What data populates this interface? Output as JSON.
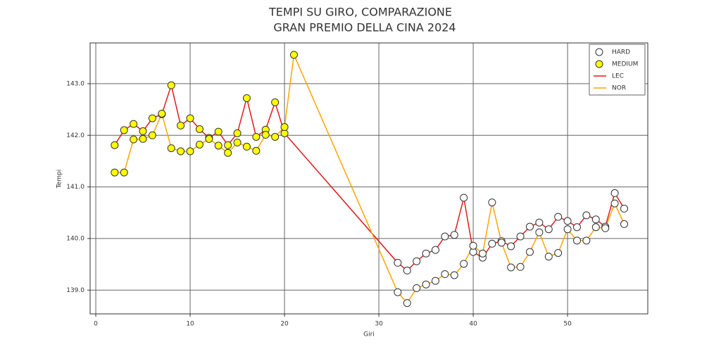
{
  "chart_data": {
    "type": "line",
    "title_lines": [
      "TEMPI SU GIRO, COMPARAZIONE",
      "GRAN PREMIO DELLA CINA 2024"
    ],
    "xlabel": "Giri",
    "ylabel": "Tempi",
    "xlim": [
      -0.6,
      58.5
    ],
    "ylim": [
      138.54,
      143.79
    ],
    "xticks": [
      0,
      10,
      20,
      30,
      40,
      50
    ],
    "yticks": [
      {
        "value": 139,
        "label": "139.0"
      },
      {
        "value": 140,
        "label": "140.0"
      },
      {
        "value": 141,
        "label": "141.0"
      },
      {
        "value": 142,
        "label": "142.0"
      },
      {
        "value": 143,
        "label": "143.0"
      }
    ],
    "grid": true,
    "legend": "upper right",
    "markers": [
      {
        "name": "HARD",
        "color": "#ffffff"
      },
      {
        "name": "MEDIUM",
        "color": "#ffff00"
      }
    ],
    "series": [
      {
        "name": "LEC",
        "color": "#e31a1c",
        "x": [
          2,
          3,
          4,
          5,
          6,
          7,
          8,
          9,
          10,
          11,
          12,
          13,
          14,
          15,
          16,
          17,
          18,
          19,
          20,
          32,
          33,
          34,
          35,
          36,
          37,
          38,
          39,
          40,
          41,
          42,
          43,
          44,
          45,
          46,
          47,
          48,
          49,
          50,
          51,
          52,
          53,
          54,
          55,
          56
        ],
        "values": [
          141.81,
          142.1,
          142.22,
          142.08,
          142.33,
          142.41,
          142.97,
          142.19,
          142.33,
          142.12,
          141.95,
          142.07,
          141.81,
          142.04,
          142.72,
          141.97,
          142.11,
          142.64,
          142.04,
          139.53,
          139.38,
          139.56,
          139.71,
          139.78,
          140.04,
          140.07,
          140.79,
          139.74,
          139.63,
          139.9,
          139.95,
          139.85,
          140.04,
          140.23,
          140.31,
          140.18,
          140.42,
          140.34,
          140.22,
          140.45,
          140.37,
          140.23,
          140.88,
          140.58
        ],
        "compound": [
          "MEDIUM",
          "MEDIUM",
          "MEDIUM",
          "MEDIUM",
          "MEDIUM",
          "MEDIUM",
          "MEDIUM",
          "MEDIUM",
          "MEDIUM",
          "MEDIUM",
          "MEDIUM",
          "MEDIUM",
          "MEDIUM",
          "MEDIUM",
          "MEDIUM",
          "MEDIUM",
          "MEDIUM",
          "MEDIUM",
          "MEDIUM",
          "HARD",
          "HARD",
          "HARD",
          "HARD",
          "HARD",
          "HARD",
          "HARD",
          "HARD",
          "HARD",
          "HARD",
          "HARD",
          "HARD",
          "HARD",
          "HARD",
          "HARD",
          "HARD",
          "HARD",
          "HARD",
          "HARD",
          "HARD",
          "HARD",
          "HARD",
          "HARD",
          "HARD",
          "HARD"
        ]
      },
      {
        "name": "NOR",
        "color": "#ffa500",
        "x": [
          2,
          3,
          4,
          5,
          6,
          7,
          8,
          9,
          10,
          11,
          12,
          13,
          14,
          15,
          16,
          17,
          18,
          19,
          20,
          21,
          32,
          33,
          34,
          35,
          36,
          37,
          38,
          39,
          40,
          41,
          42,
          43,
          44,
          45,
          46,
          47,
          48,
          49,
          50,
          51,
          52,
          53,
          54,
          55,
          56
        ],
        "values": [
          141.28,
          141.28,
          141.92,
          141.93,
          142.0,
          142.42,
          141.75,
          141.69,
          141.69,
          141.82,
          141.93,
          141.8,
          141.66,
          141.86,
          141.78,
          141.7,
          142.01,
          141.97,
          142.16,
          143.56,
          138.96,
          138.75,
          139.04,
          139.11,
          139.18,
          139.31,
          139.29,
          139.51,
          139.86,
          139.71,
          140.7,
          139.92,
          139.44,
          139.45,
          139.74,
          140.12,
          139.65,
          139.72,
          140.18,
          139.96,
          139.96,
          140.22,
          140.2,
          140.68,
          140.28
        ],
        "compound": [
          "MEDIUM",
          "MEDIUM",
          "MEDIUM",
          "MEDIUM",
          "MEDIUM",
          "MEDIUM",
          "MEDIUM",
          "MEDIUM",
          "MEDIUM",
          "MEDIUM",
          "MEDIUM",
          "MEDIUM",
          "MEDIUM",
          "MEDIUM",
          "MEDIUM",
          "MEDIUM",
          "MEDIUM",
          "MEDIUM",
          "MEDIUM",
          "MEDIUM",
          "HARD",
          "HARD",
          "HARD",
          "HARD",
          "HARD",
          "HARD",
          "HARD",
          "HARD",
          "HARD",
          "HARD",
          "HARD",
          "HARD",
          "HARD",
          "HARD",
          "HARD",
          "HARD",
          "HARD",
          "HARD",
          "HARD",
          "HARD",
          "HARD",
          "HARD",
          "HARD",
          "HARD",
          "HARD"
        ]
      }
    ]
  }
}
